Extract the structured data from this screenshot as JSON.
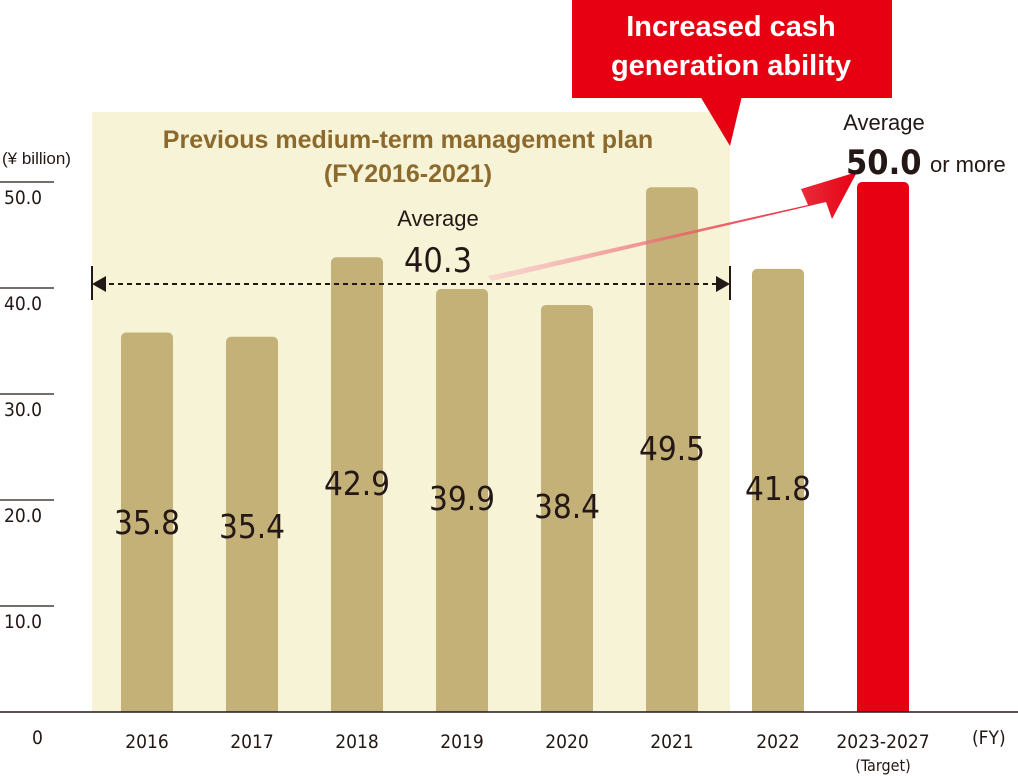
{
  "chart_data": {
    "type": "bar",
    "unit": "(¥ billion)",
    "x_unit": "(FY)",
    "ylim": [
      0,
      50
    ],
    "yticks": [
      "0",
      "10.0",
      "20.0",
      "30.0",
      "40.0",
      "50.0"
    ],
    "categories": [
      "2016",
      "2017",
      "2018",
      "2019",
      "2020",
      "2021",
      "2022",
      "2023-2027"
    ],
    "category_sublabels": [
      "",
      "",
      "",
      "",
      "",
      "",
      "",
      "(Target)"
    ],
    "values": [
      35.8,
      35.4,
      42.9,
      39.9,
      38.4,
      49.5,
      41.8,
      50.0
    ],
    "value_labels": [
      "35.8",
      "35.4",
      "42.9",
      "39.9",
      "38.4",
      "49.5",
      "41.8",
      ""
    ],
    "colors": {
      "actual": "#c4b178",
      "target": "#e60012",
      "plan_band": "#f7f3d6",
      "plan_title": "#8c6a2d"
    },
    "previous_plan": {
      "title": "Previous medium-term management plan",
      "period": "(FY2016-2021)",
      "average_label": "Average",
      "average_value": "40.3"
    },
    "target": {
      "average_label": "Average",
      "value": "50.0",
      "suffix": "or more"
    },
    "callout": {
      "line1": "Increased cash",
      "line2": "generation ability"
    }
  }
}
